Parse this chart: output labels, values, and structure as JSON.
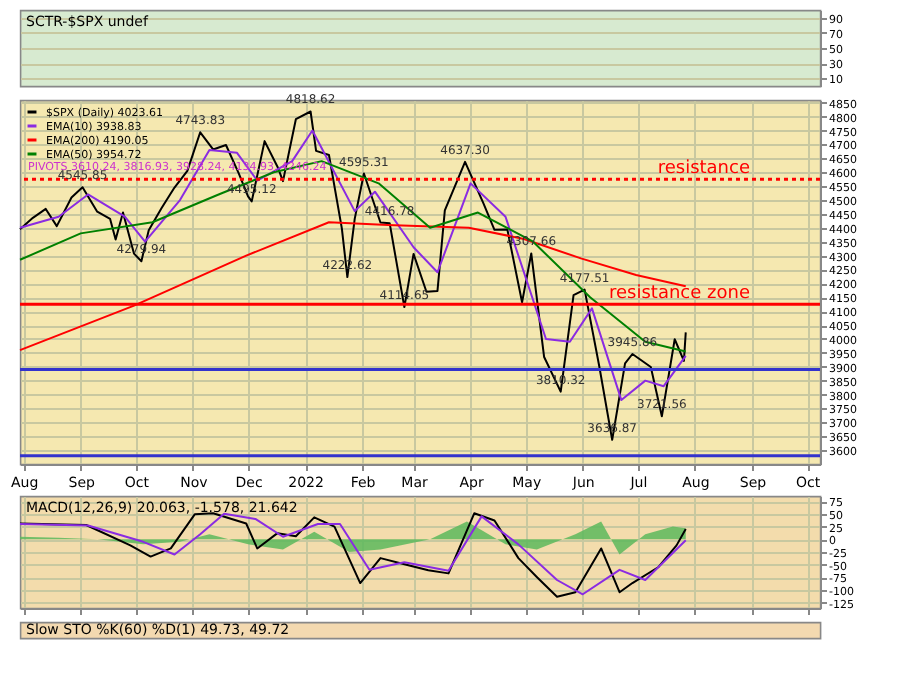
{
  "chart_data": [
    {
      "type": "line",
      "title": "SCTR-$SPX undef",
      "ylim": [
        0,
        100
      ],
      "yticks": [
        10,
        30,
        50,
        70,
        90
      ],
      "tick_labels": "y",
      "grid": true,
      "xlim": [
        "2021-07-30",
        "2022-10-08"
      ],
      "xticks": [
        {
          "value": "2021-08-01",
          "label": null
        },
        {
          "value": "2021-09-01",
          "label": null
        },
        {
          "value": "2021-10-01",
          "label": null
        },
        {
          "value": "2021-11-01",
          "label": null
        },
        {
          "value": "2021-12-01",
          "label": null
        },
        {
          "value": "2022-01-01",
          "label": null
        },
        {
          "value": "2022-02-01",
          "label": null
        },
        {
          "value": "2022-03-01",
          "label": null
        },
        {
          "value": "2022-04-01",
          "label": null
        },
        {
          "value": "2022-05-01",
          "label": null
        },
        {
          "value": "2022-06-01",
          "label": null
        },
        {
          "value": "2022-07-01",
          "label": null
        },
        {
          "value": "2022-08-01",
          "label": null
        },
        {
          "value": "2022-09-01",
          "label": null
        },
        {
          "value": "2022-10-01",
          "label": null
        }
      ]
    },
    {
      "type": "line",
      "legend": "top left",
      "grid": true,
      "xlim": [
        "2021-07-30",
        "2022-10-08"
      ],
      "xticks": [
        {
          "value": "2021-08-01",
          "label": "Aug"
        },
        {
          "value": "2021-09-01",
          "label": "Sep"
        },
        {
          "value": "2021-10-01",
          "label": "Oct"
        },
        {
          "value": "2021-11-01",
          "label": "Nov"
        },
        {
          "value": "2021-12-01",
          "label": "Dec"
        },
        {
          "value": "2022-01-01",
          "label": "2022"
        },
        {
          "value": "2022-02-01",
          "label": "Feb"
        },
        {
          "value": "2022-03-01",
          "label": "Mar"
        },
        {
          "value": "2022-04-01",
          "label": "Apr"
        },
        {
          "value": "2022-05-01",
          "label": "May"
        },
        {
          "value": "2022-06-01",
          "label": "Jun"
        },
        {
          "value": "2022-07-01",
          "label": "Jul"
        },
        {
          "value": "2022-08-01",
          "label": "Aug"
        },
        {
          "value": "2022-09-01",
          "label": "Sep"
        },
        {
          "value": "2022-10-01",
          "label": "Oct"
        }
      ],
      "ylim": [
        3550,
        4860
      ],
      "yticks": [
        3600,
        3650,
        3700,
        3750,
        3800,
        3850,
        3900,
        3950,
        4000,
        4050,
        4100,
        4150,
        4200,
        4250,
        4300,
        4350,
        4400,
        4450,
        4500,
        4550,
        4600,
        4650,
        4700,
        4750,
        4800,
        4850
      ],
      "series": [
        {
          "name": "$SPX (Daily) 4023.61",
          "color": "#000000",
          "x": [
            "2021-07-30",
            "2021-08-06",
            "2021-08-13",
            "2021-08-19",
            "2021-08-27",
            "2021-09-02",
            "2021-09-10",
            "2021-09-17",
            "2021-09-20",
            "2021-09-24",
            "2021-09-30",
            "2021-10-04",
            "2021-10-08",
            "2021-10-15",
            "2021-10-22",
            "2021-10-29",
            "2021-11-05",
            "2021-11-12",
            "2021-11-19",
            "2021-11-26",
            "2021-12-01",
            "2021-12-03",
            "2021-12-10",
            "2021-12-17",
            "2021-12-20",
            "2021-12-27",
            "2022-01-04",
            "2022-01-07",
            "2022-01-14",
            "2022-01-21",
            "2022-01-24",
            "2022-01-28",
            "2022-02-02",
            "2022-02-11",
            "2022-02-16",
            "2022-02-24",
            "2022-03-01",
            "2022-03-08",
            "2022-03-14",
            "2022-03-18",
            "2022-03-29",
            "2022-04-08",
            "2022-04-14",
            "2022-04-21",
            "2022-04-29",
            "2022-05-04",
            "2022-05-11",
            "2022-05-20",
            "2022-05-27",
            "2022-06-02",
            "2022-06-10",
            "2022-06-17",
            "2022-06-24",
            "2022-06-28",
            "2022-07-08",
            "2022-07-14",
            "2022-07-21",
            "2022-07-26",
            "2022-07-27"
          ],
          "values": [
            4395,
            4436,
            4468,
            4406,
            4509,
            4545.85,
            4458,
            4432,
            4358,
            4455,
            4307,
            4279.94,
            4391,
            4471,
            4545,
            4605,
            4743.83,
            4682,
            4698,
            4595,
            4513,
            4495.12,
            4712,
            4620,
            4568,
            4791,
            4818.62,
            4677,
            4662,
            4398,
            4222.62,
            4432,
            4595.31,
            4419,
            4416.78,
            4114.65,
            4306,
            4170,
            4173,
            4463,
            4637.3,
            4488,
            4393,
            4394,
            4132,
            4307.66,
            3935,
            3810.32,
            4158,
            4177.51,
            3901,
            3636.87,
            3912,
            3945.86,
            3899,
            3721.56,
            3999,
            3921,
            4023.61
          ]
        },
        {
          "name": "EMA(10) 3938.83",
          "color": "#8a2be2",
          "x": [
            "2021-07-30",
            "2021-08-20",
            "2021-09-05",
            "2021-09-25",
            "2021-10-06",
            "2021-10-25",
            "2021-11-10",
            "2021-11-25",
            "2021-12-06",
            "2021-12-25",
            "2022-01-05",
            "2022-01-28",
            "2022-02-08",
            "2022-03-01",
            "2022-03-14",
            "2022-04-01",
            "2022-04-20",
            "2022-05-12",
            "2022-05-25",
            "2022-06-06",
            "2022-06-22",
            "2022-07-05",
            "2022-07-15",
            "2022-07-27"
          ],
          "values": [
            4400,
            4440,
            4520,
            4440,
            4350,
            4500,
            4680,
            4670,
            4570,
            4640,
            4750,
            4460,
            4530,
            4330,
            4240,
            4560,
            4440,
            4000,
            3990,
            4110,
            3780,
            3850,
            3830,
            3938.83
          ]
        },
        {
          "name": "EMA(200) 4190.05",
          "color": "#ff0000",
          "x": [
            "2021-07-30",
            "2021-09-30",
            "2021-11-30",
            "2022-01-14",
            "2022-02-15",
            "2022-03-31",
            "2022-04-30",
            "2022-05-31",
            "2022-06-30",
            "2022-07-27"
          ],
          "values": [
            3960,
            4120,
            4300,
            4420,
            4410,
            4400,
            4360,
            4290,
            4230,
            4190.05
          ]
        },
        {
          "name": "EMA(50) 3954.72",
          "color": "#008000",
          "x": [
            "2021-07-30",
            "2021-09-01",
            "2021-10-10",
            "2021-11-15",
            "2021-12-15",
            "2022-01-10",
            "2022-02-10",
            "2022-03-10",
            "2022-04-05",
            "2022-05-05",
            "2022-06-05",
            "2022-07-05",
            "2022-07-27"
          ],
          "values": [
            4285,
            4380,
            4420,
            4520,
            4600,
            4640,
            4560,
            4400,
            4455,
            4350,
            4150,
            3990,
            3954.72
          ]
        }
      ],
      "ref_lines": [
        {
          "axis": "y",
          "value": 4575,
          "label": "resistance",
          "color": "#ff0000",
          "line_style": "dotted"
        },
        {
          "axis": "y",
          "value": 4125,
          "label": "resistance zone",
          "color": "#ff0000",
          "line_style": "solid"
        },
        {
          "axis": "y",
          "value": 3890,
          "color": "#3333cc",
          "line_style": "solid"
        },
        {
          "axis": "y",
          "value": 3580,
          "color": "#3333cc",
          "line_style": "solid"
        }
      ],
      "annotations": [
        "PIVOTS 3610.24, 3816.93, 3928.24, 4134.93, 4246.24",
        {
          "text": "4545.85",
          "x": "2021-09-02",
          "y": 4545.85
        },
        {
          "text": "4279.94",
          "x": "2021-10-04",
          "y": 4279.94
        },
        {
          "text": "4743.83",
          "x": "2021-11-05",
          "y": 4743.83
        },
        {
          "text": "4495.12",
          "x": "2021-12-03",
          "y": 4495.12
        },
        {
          "text": "4818.62",
          "x": "2022-01-04",
          "y": 4818.62
        },
        {
          "text": "4222.62",
          "x": "2022-01-24",
          "y": 4222.62
        },
        {
          "text": "4595.31",
          "x": "2022-02-02",
          "y": 4595.31
        },
        {
          "text": "4416.78",
          "x": "2022-02-16",
          "y": 4416.78
        },
        {
          "text": "4114.65",
          "x": "2022-02-24",
          "y": 4114.65
        },
        {
          "text": "4637.30",
          "x": "2022-03-29",
          "y": 4637.3
        },
        {
          "text": "4307.66",
          "x": "2022-05-04",
          "y": 4307.66
        },
        {
          "text": "3810.32",
          "x": "2022-05-20",
          "y": 3810.32
        },
        {
          "text": "4177.51",
          "x": "2022-06-02",
          "y": 4177.51
        },
        {
          "text": "3636.87",
          "x": "2022-06-17",
          "y": 3636.87
        },
        {
          "text": "3945.86",
          "x": "2022-06-28",
          "y": 3945.86
        },
        {
          "text": "3721.56",
          "x": "2022-07-14",
          "y": 3721.56
        }
      ]
    },
    {
      "type": "line",
      "title": "MACD(12,26,9) 20.063, -1.578, 21.642",
      "tick_labels": "y",
      "grid": true,
      "xlim": [
        "2021-07-30",
        "2022-10-08"
      ],
      "xticks": [
        {
          "value": "2021-08-01",
          "label": null
        },
        {
          "value": "2021-09-01",
          "label": null
        },
        {
          "value": "2021-10-01",
          "label": null
        },
        {
          "value": "2021-11-01",
          "label": null
        },
        {
          "value": "2021-12-01",
          "label": null
        },
        {
          "value": "2022-01-01",
          "label": null
        },
        {
          "value": "2022-02-01",
          "label": null
        },
        {
          "value": "2022-03-01",
          "label": null
        },
        {
          "value": "2022-04-01",
          "label": null
        },
        {
          "value": "2022-05-01",
          "label": null
        },
        {
          "value": "2022-06-01",
          "label": null
        },
        {
          "value": "2022-07-01",
          "label": null
        },
        {
          "value": "2022-08-01",
          "label": null
        },
        {
          "value": "2022-09-01",
          "label": null
        },
        {
          "value": "2022-10-01",
          "label": null
        }
      ],
      "ylim": [
        -135,
        85
      ],
      "yticks": [
        -125,
        -100,
        -75,
        -50,
        -25,
        0,
        25,
        50,
        75
      ],
      "series": [
        {
          "type": "area",
          "color": "#5cb85c",
          "x": [
            "2021-07-30",
            "2021-08-20",
            "2021-09-10",
            "2021-10-05",
            "2021-10-25",
            "2021-11-10",
            "2021-12-01",
            "2021-12-20",
            "2022-01-06",
            "2022-01-25",
            "2022-02-11",
            "2022-03-10",
            "2022-03-30",
            "2022-04-20",
            "2022-05-07",
            "2022-05-28",
            "2022-06-11",
            "2022-06-21",
            "2022-07-05",
            "2022-07-20",
            "2022-07-27"
          ],
          "values": [
            5,
            3,
            0,
            -10,
            -5,
            10,
            -10,
            -20,
            15,
            -25,
            -20,
            0,
            35,
            -10,
            -20,
            10,
            35,
            -30,
            10,
            25,
            21.642
          ]
        },
        {
          "color": "#000000",
          "x": [
            "2021-07-30",
            "2021-09-04",
            "2021-09-28",
            "2021-10-09",
            "2021-10-20",
            "2021-11-02",
            "2021-11-12",
            "2021-11-30",
            "2021-12-06",
            "2021-12-17",
            "2021-12-27",
            "2022-01-06",
            "2022-01-17",
            "2022-01-31",
            "2022-02-11",
            "2022-02-24",
            "2022-03-09",
            "2022-03-20",
            "2022-04-03",
            "2022-04-14",
            "2022-04-27",
            "2022-05-07",
            "2022-05-18",
            "2022-05-28",
            "2022-06-11",
            "2022-06-21",
            "2022-06-28",
            "2022-07-12",
            "2022-07-22",
            "2022-07-27"
          ],
          "values": [
            31,
            28,
            -12,
            -34,
            -18,
            49,
            51,
            31,
            -18,
            12,
            6,
            43,
            25,
            -86,
            -37,
            -49,
            -61,
            -67,
            51,
            37,
            -37,
            -74,
            -113,
            -104,
            -18,
            -104,
            -86,
            -55,
            -12,
            20
          ]
        },
        {
          "color": "#8a2be2",
          "x": [
            "2021-07-30",
            "2021-09-05",
            "2021-10-05",
            "2021-10-22",
            "2021-11-05",
            "2021-11-18",
            "2021-12-05",
            "2021-12-20",
            "2022-01-08",
            "2022-01-20",
            "2022-02-05",
            "2022-02-24",
            "2022-03-20",
            "2022-04-07",
            "2022-04-27",
            "2022-05-18",
            "2022-06-01",
            "2022-06-21",
            "2022-07-05",
            "2022-07-27"
          ],
          "values": [
            30,
            27,
            -5,
            -30,
            10,
            50,
            40,
            5,
            30,
            30,
            -60,
            -45,
            -62,
            45,
            -10,
            -80,
            -108,
            -60,
            -80,
            -2
          ]
        }
      ]
    },
    {
      "type": "other",
      "title": "Slow STO %K(60) %D(1) 49.73, 49.72"
    }
  ]
}
